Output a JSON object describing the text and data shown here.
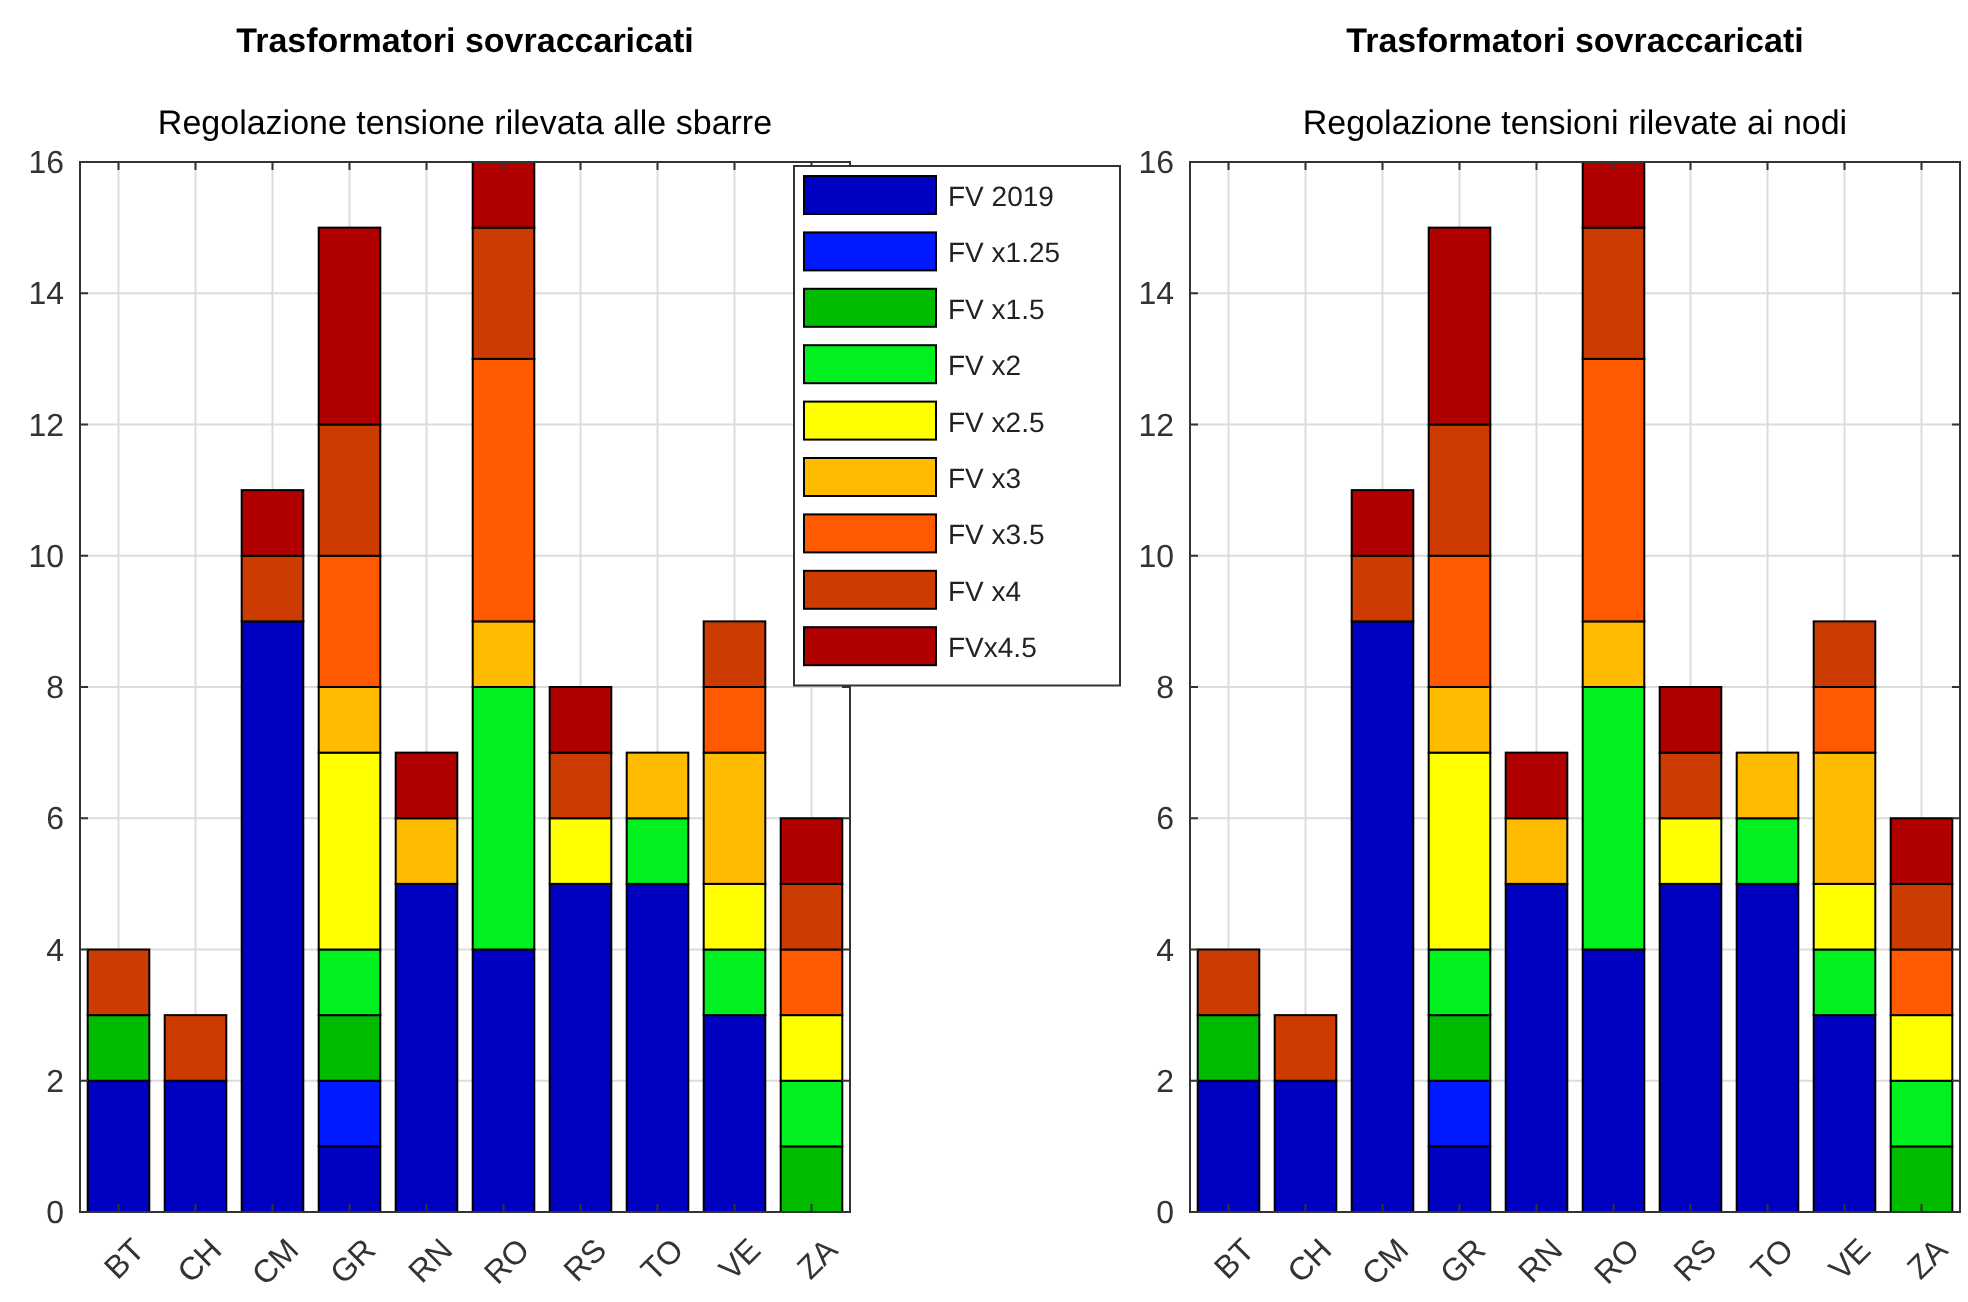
{
  "chart_data": [
    {
      "type": "bar",
      "title": "Trasformatori sovraccaricati",
      "subtitle": "Regolazione tensione rilevata alle sbarre",
      "categories": [
        "BT",
        "CH",
        "CM",
        "GR",
        "RN",
        "RO",
        "RS",
        "TO",
        "VE",
        "ZA"
      ],
      "stacked": true,
      "ylim": [
        0,
        16
      ],
      "yticks": [
        0,
        2,
        4,
        6,
        8,
        10,
        12,
        14,
        16
      ],
      "grid": true,
      "legend": "top right",
      "series": [
        {
          "name": "FV 2019",
          "color": "#0000c0",
          "values": [
            2,
            2,
            9,
            1,
            5,
            4,
            5,
            5,
            3,
            0
          ]
        },
        {
          "name": "FV x1.25",
          "color": "#0019ff",
          "values": [
            0,
            0,
            0,
            1,
            0,
            0,
            0,
            0,
            0,
            0
          ]
        },
        {
          "name": "FV x1.5",
          "color": "#00bb00",
          "values": [
            1,
            0,
            0,
            1,
            0,
            0,
            0,
            0,
            0,
            1
          ]
        },
        {
          "name": "FV x2",
          "color": "#00f020",
          "values": [
            0,
            0,
            0,
            1,
            0,
            4,
            0,
            1,
            1,
            1
          ]
        },
        {
          "name": "FV x2.5",
          "color": "#ffff00",
          "values": [
            0,
            0,
            0,
            3,
            0,
            0,
            1,
            0,
            1,
            1
          ]
        },
        {
          "name": "FV x3",
          "color": "#ffbb00",
          "values": [
            0,
            0,
            0,
            1,
            1,
            1,
            0,
            1,
            2,
            0
          ]
        },
        {
          "name": "FV x3.5",
          "color": "#ff5a00",
          "values": [
            0,
            0,
            0,
            2,
            0,
            4,
            0,
            0,
            1,
            1
          ]
        },
        {
          "name": "FV x4",
          "color": "#cc3c00",
          "values": [
            1,
            1,
            1,
            2,
            0,
            2,
            1,
            0,
            1,
            1
          ]
        },
        {
          "name": "FVx4.5",
          "color": "#b00000",
          "values": [
            0,
            0,
            1,
            3,
            1,
            1,
            1,
            0,
            0,
            1
          ]
        }
      ]
    },
    {
      "type": "bar",
      "title": "Trasformatori sovraccaricati",
      "subtitle": "Regolazione tensioni rilevate ai nodi",
      "categories": [
        "BT",
        "CH",
        "CM",
        "GR",
        "RN",
        "RO",
        "RS",
        "TO",
        "VE",
        "ZA"
      ],
      "stacked": true,
      "ylim": [
        0,
        16
      ],
      "yticks": [
        0,
        2,
        4,
        6,
        8,
        10,
        12,
        14,
        16
      ],
      "grid": true,
      "series": [
        {
          "color": "#0000c0",
          "values": [
            2,
            2,
            9,
            1,
            5,
            4,
            5,
            5,
            3,
            0
          ]
        },
        {
          "color": "#0019ff",
          "values": [
            0,
            0,
            0,
            1,
            0,
            0,
            0,
            0,
            0,
            0
          ]
        },
        {
          "color": "#00bb00",
          "values": [
            1,
            0,
            0,
            1,
            0,
            0,
            0,
            0,
            0,
            1
          ]
        },
        {
          "color": "#00f020",
          "values": [
            0,
            0,
            0,
            1,
            0,
            4,
            0,
            1,
            1,
            1
          ]
        },
        {
          "color": "#ffff00",
          "values": [
            0,
            0,
            0,
            3,
            0,
            0,
            1,
            0,
            1,
            1
          ]
        },
        {
          "color": "#ffbb00",
          "values": [
            0,
            0,
            0,
            1,
            1,
            1,
            0,
            1,
            2,
            0
          ]
        },
        {
          "color": "#ff5a00",
          "values": [
            0,
            0,
            0,
            2,
            0,
            4,
            0,
            0,
            1,
            1
          ]
        },
        {
          "color": "#cc3c00",
          "values": [
            1,
            1,
            1,
            2,
            0,
            2,
            1,
            0,
            1,
            1
          ]
        },
        {
          "color": "#b00000",
          "values": [
            0,
            0,
            1,
            3,
            1,
            1,
            1,
            0,
            0,
            1
          ]
        }
      ]
    }
  ]
}
